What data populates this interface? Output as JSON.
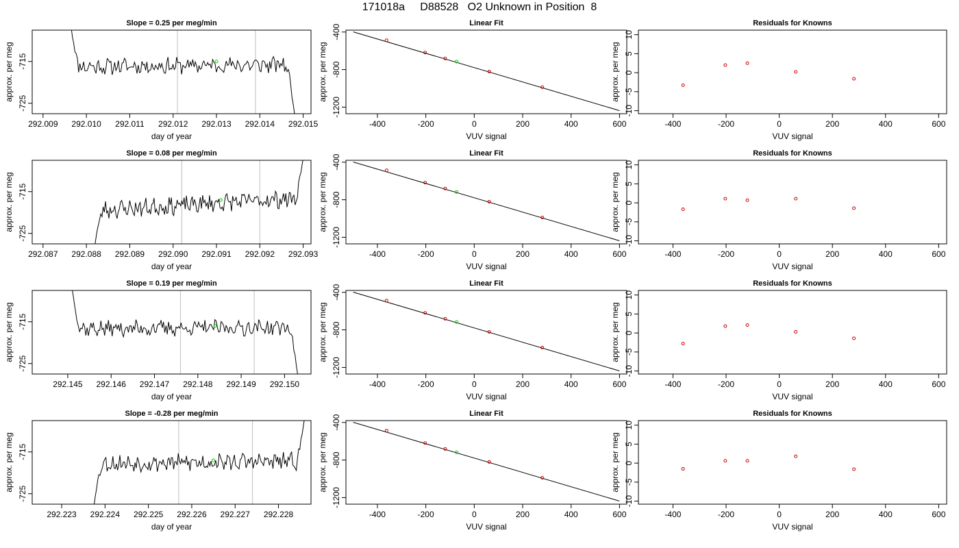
{
  "suptitle": "171018a     D88528   O2 Unknown in Position  8",
  "colors": {
    "trace": "#000000",
    "vlines": "#c8c8c8",
    "unknown": "#00cc00",
    "known": "#cc0000",
    "fitline": "#000000"
  },
  "chart_data": [
    {
      "type": "line",
      "row": 0,
      "panel": "trace",
      "title": "Slope =  0.25  per meg/min",
      "xlabel": "day of year",
      "ylabel": "approx. per meg",
      "xlim": [
        292.00875,
        292.01518
      ],
      "ylim": [
        -727.5,
        -707.5
      ],
      "xticks": [
        "292.009",
        "292.010",
        "292.011",
        "292.012",
        "292.013",
        "292.014",
        "292.015"
      ],
      "yticks": [
        -715,
        -725
      ],
      "vlines": [
        292.0121,
        292.0139
      ],
      "trace": {
        "x_start": 292.00965,
        "x_end": 292.0148,
        "start_y": -707,
        "end_y": -727.5,
        "level": -716,
        "drift": 0.5,
        "amp": 1.6,
        "seed": 11,
        "rise_at": null
      },
      "marker": {
        "x": 292.013,
        "y": -715.0
      }
    },
    {
      "type": "line",
      "row": 1,
      "panel": "trace",
      "title": "Slope =  0.08  per meg/min",
      "xlabel": "day of year",
      "ylabel": "approx. per meg",
      "xlim": [
        292.08675,
        292.09318
      ],
      "ylim": [
        -727.5,
        -707.5
      ],
      "xticks": [
        "292.087",
        "292.088",
        "292.089",
        "292.090",
        "292.091",
        "292.092",
        "292.093"
      ],
      "yticks": [
        -715,
        -725
      ],
      "vlines": [
        292.0902,
        292.092
      ],
      "trace": {
        "x_start": 292.0882,
        "x_end": 292.093,
        "start_y": -727.5,
        "end_y": -707,
        "level": -718,
        "drift": 3,
        "amp": 1.8,
        "seed": 23,
        "rise_at": 292.0926
      },
      "marker": {
        "x": 292.0911,
        "y": -717.0
      }
    },
    {
      "type": "line",
      "row": 2,
      "panel": "trace",
      "title": "Slope =  0.19  per meg/min",
      "xlabel": "day of year",
      "ylabel": "approx. per meg",
      "xlim": [
        292.14418,
        292.15061
      ],
      "ylim": [
        -727.5,
        -707.5
      ],
      "xticks": [
        "292.145",
        "292.146",
        "292.147",
        "292.148",
        "292.149",
        "292.150"
      ],
      "yticks": [
        -715,
        -725
      ],
      "vlines": [
        292.1476,
        292.1493
      ],
      "trace": {
        "x_start": 292.1451,
        "x_end": 292.1503,
        "start_y": -707,
        "end_y": -727.5,
        "level": -716.5,
        "drift": 0.3,
        "amp": 1.6,
        "seed": 37,
        "rise_at": null
      },
      "marker": {
        "x": 292.1484,
        "y": -716.0
      }
    },
    {
      "type": "line",
      "row": 3,
      "panel": "trace",
      "title": "Slope =  -0.28  per meg/min",
      "xlabel": "day of year",
      "ylabel": "approx. per meg",
      "xlim": [
        292.22232,
        292.22875
      ],
      "ylim": [
        -727.5,
        -707.5
      ],
      "xticks": [
        "292.223",
        "292.224",
        "292.225",
        "292.226",
        "292.227",
        "292.228"
      ],
      "yticks": [
        -715,
        -725
      ],
      "vlines": [
        292.2257,
        292.2274
      ],
      "trace": {
        "x_start": 292.22375,
        "x_end": 292.2286,
        "start_y": -727.5,
        "end_y": -707,
        "level": -717.5,
        "drift": 0.6,
        "amp": 1.7,
        "seed": 53,
        "rise_at": 292.2283
      },
      "marker": {
        "x": 292.2265,
        "y": -717.0
      }
    },
    {
      "type": "scatter",
      "row": 0,
      "panel": "fit",
      "title": "Linear Fit",
      "xlabel": "VUV signal",
      "ylabel": "approx. per meg",
      "xlim": [
        -530,
        630
      ],
      "ylim": [
        -1270,
        -380
      ],
      "xticks": [
        -400,
        -200,
        0,
        200,
        400,
        600
      ],
      "yticks": [
        -400,
        -800,
        -1200
      ],
      "line": {
        "x": [
          -500,
          600
        ],
        "y": [
          -398,
          -1237
        ]
      },
      "knowns": {
        "x": [
          -362,
          -203,
          -120,
          62,
          281
        ],
        "y": [
          -488,
          -619,
          -682,
          -821,
          -987
        ]
      },
      "unknown": {
        "x": -73,
        "y": -715
      }
    },
    {
      "type": "scatter",
      "row": 1,
      "panel": "fit",
      "title": "Linear Fit",
      "xlabel": "VUV signal",
      "ylabel": "approx. per meg",
      "xlim": [
        -530,
        630
      ],
      "ylim": [
        -1270,
        -380
      ],
      "xticks": [
        -400,
        -200,
        0,
        200,
        400,
        600
      ],
      "yticks": [
        -400,
        -800,
        -1200
      ],
      "line": {
        "x": [
          -500,
          600
        ],
        "y": [
          -398,
          -1237
        ]
      },
      "knowns": {
        "x": [
          -362,
          -203,
          -120,
          62,
          281
        ],
        "y": [
          -487,
          -618,
          -681,
          -821,
          -989
        ]
      },
      "unknown": {
        "x": -73,
        "y": -717
      }
    },
    {
      "type": "scatter",
      "row": 2,
      "panel": "fit",
      "title": "Linear Fit",
      "xlabel": "VUV signal",
      "ylabel": "approx. per meg",
      "xlim": [
        -530,
        630
      ],
      "ylim": [
        -1270,
        -380
      ],
      "xticks": [
        -400,
        -200,
        0,
        200,
        400,
        600
      ],
      "yticks": [
        -400,
        -800,
        -1200
      ],
      "line": {
        "x": [
          -500,
          600
        ],
        "y": [
          -398,
          -1237
        ]
      },
      "knowns": {
        "x": [
          -362,
          -203,
          -120,
          62,
          281
        ],
        "y": [
          -488,
          -619,
          -682,
          -821,
          -988
        ]
      },
      "unknown": {
        "x": -73,
        "y": -716
      }
    },
    {
      "type": "scatter",
      "row": 3,
      "panel": "fit",
      "title": "Linear Fit",
      "xlabel": "VUV signal",
      "ylabel": "approx. per meg",
      "xlim": [
        -530,
        630
      ],
      "ylim": [
        -1270,
        -380
      ],
      "xticks": [
        -400,
        -200,
        0,
        200,
        400,
        600
      ],
      "yticks": [
        -400,
        -800,
        -1200
      ],
      "line": {
        "x": [
          -500,
          600
        ],
        "y": [
          -398,
          -1237
        ]
      },
      "knowns": {
        "x": [
          -362,
          -203,
          -120,
          62,
          281
        ],
        "y": [
          -487,
          -619,
          -682,
          -820,
          -989
        ]
      },
      "unknown": {
        "x": -73,
        "y": -717
      }
    },
    {
      "type": "scatter",
      "row": 0,
      "panel": "resid",
      "title": "Residuals for Knowns",
      "xlabel": "VUV signal",
      "ylabel": "approx. per meg",
      "xlim": [
        -530,
        630
      ],
      "ylim": [
        -10.8,
        11.2
      ],
      "xticks": [
        -400,
        -200,
        0,
        200,
        400,
        600
      ],
      "yticks": [
        10,
        5,
        0,
        -5,
        -10
      ],
      "points": {
        "x": [
          -362,
          -203,
          -120,
          62,
          281
        ],
        "y": [
          -3.3,
          2.0,
          2.5,
          0.2,
          -1.6
        ]
      }
    },
    {
      "type": "scatter",
      "row": 1,
      "panel": "resid",
      "title": "Residuals for Knowns",
      "xlabel": "VUV signal",
      "ylabel": "approx. per meg",
      "xlim": [
        -530,
        630
      ],
      "ylim": [
        -10.8,
        11.2
      ],
      "xticks": [
        -400,
        -200,
        0,
        200,
        400,
        600
      ],
      "yticks": [
        10,
        5,
        0,
        -5,
        -10
      ],
      "points": {
        "x": [
          -362,
          -203,
          -120,
          62,
          281
        ],
        "y": [
          -1.7,
          1.1,
          0.7,
          1.1,
          -1.4
        ]
      }
    },
    {
      "type": "scatter",
      "row": 2,
      "panel": "resid",
      "title": "Residuals for Knowns",
      "xlabel": "VUV signal",
      "ylabel": "approx. per meg",
      "xlim": [
        -530,
        630
      ],
      "ylim": [
        -10.8,
        11.2
      ],
      "xticks": [
        -400,
        -200,
        0,
        200,
        400,
        600
      ],
      "yticks": [
        10,
        5,
        0,
        -5,
        -10
      ],
      "points": {
        "x": [
          -362,
          -203,
          -120,
          62,
          281
        ],
        "y": [
          -2.8,
          1.8,
          2.1,
          0.3,
          -1.4
        ]
      }
    },
    {
      "type": "scatter",
      "row": 3,
      "panel": "resid",
      "title": "Residuals for Knowns",
      "xlabel": "VUV signal",
      "ylabel": "approx. per meg",
      "xlim": [
        -530,
        630
      ],
      "ylim": [
        -10.8,
        11.2
      ],
      "xticks": [
        -400,
        -200,
        0,
        200,
        400,
        600
      ],
      "yticks": [
        10,
        5,
        0,
        -5,
        -10
      ],
      "points": {
        "x": [
          -362,
          -203,
          -120,
          62,
          281
        ],
        "y": [
          -1.5,
          0.6,
          0.6,
          1.8,
          -1.6
        ]
      }
    }
  ]
}
